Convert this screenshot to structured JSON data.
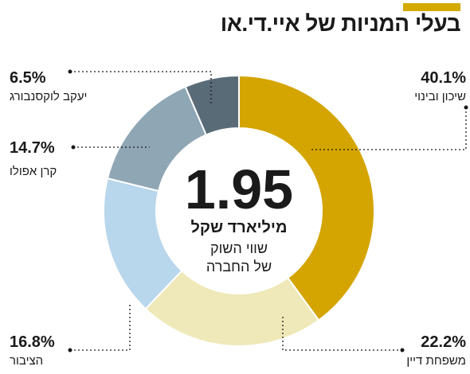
{
  "header": {
    "title": "בעלי המניות של איי.די.או",
    "accent_color": "#d4a900"
  },
  "center": {
    "value": "1.95",
    "unit": "מיליארד שקל",
    "line1": "שווי השוק",
    "line2": "של החברה"
  },
  "chart_data": {
    "type": "pie",
    "variant": "donut",
    "value_unit": "%",
    "slices": [
      {
        "label": "שיכון ובינוי",
        "value": 40.1,
        "display": "40.1%",
        "color": "#d4a500"
      },
      {
        "label": "משפחת דיין",
        "value": 22.2,
        "display": "22.2%",
        "color": "#efe8b8"
      },
      {
        "label": "הציבור",
        "value": 16.8,
        "display": "16.8%",
        "color": "#b8d6ec"
      },
      {
        "label": "קרן אפולו",
        "value": 14.7,
        "display": "14.7%",
        "color": "#8fa6b5"
      },
      {
        "label": "יעקב לוקסנבורג",
        "value": 6.5,
        "display": "6.5%",
        "color": "#5a6b78"
      }
    ]
  }
}
